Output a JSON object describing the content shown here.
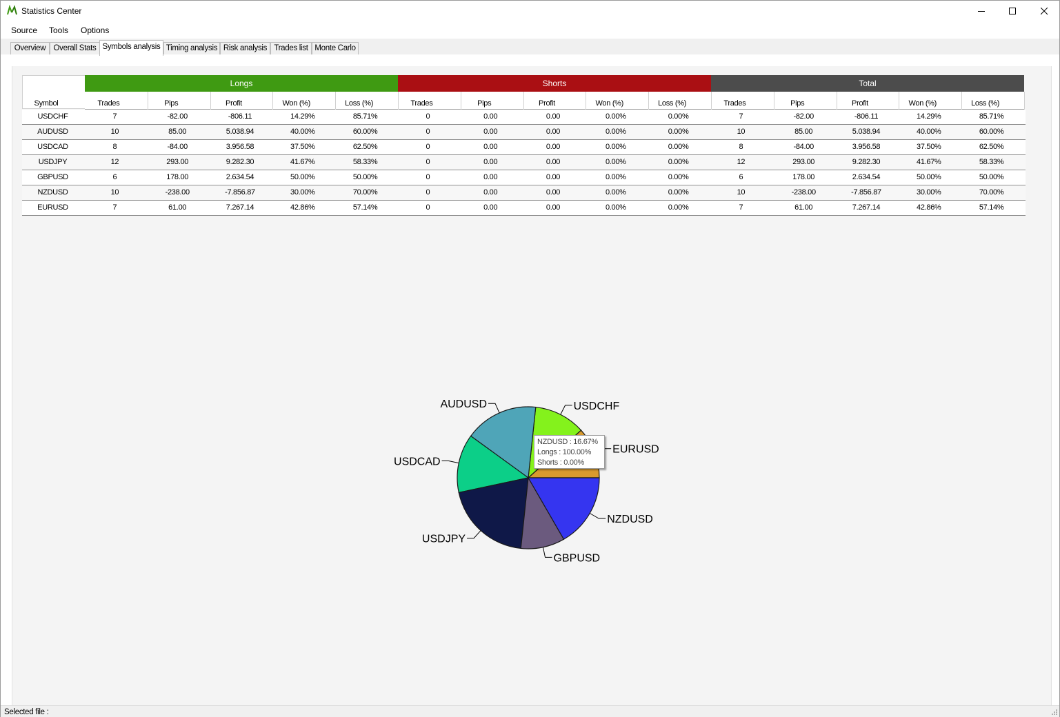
{
  "window": {
    "title": "Statistics Center",
    "icon": "m-logo-icon"
  },
  "menu": [
    "Source",
    "Tools",
    "Options"
  ],
  "tabs": [
    "Overview",
    "Overall Stats",
    "Symbols analysis",
    "Timing analysis",
    "Risk analysis",
    "Trades list",
    "Monte Carlo"
  ],
  "active_tab": "Symbols analysis",
  "table": {
    "groups": [
      {
        "label": "Longs",
        "color": "#3f9a12"
      },
      {
        "label": "Shorts",
        "color": "#aa0f13"
      },
      {
        "label": "Total",
        "color": "#4c4c4c"
      }
    ],
    "symbol_header": "Symbol",
    "sub_headers": [
      "Trades",
      "Pips",
      "Profit",
      "Won (%)",
      "Loss (%)"
    ],
    "rows": [
      [
        "USDCHF",
        "7",
        "-82.00",
        "-806.11",
        "14.29%",
        "85.71%",
        "0",
        "0.00",
        "0.00",
        "0.00%",
        "0.00%",
        "7",
        "-82.00",
        "-806.11",
        "14.29%",
        "85.71%"
      ],
      [
        "AUDUSD",
        "10",
        "85.00",
        "5.038.94",
        "40.00%",
        "60.00%",
        "0",
        "0.00",
        "0.00",
        "0.00%",
        "0.00%",
        "10",
        "85.00",
        "5.038.94",
        "40.00%",
        "60.00%"
      ],
      [
        "USDCAD",
        "8",
        "-84.00",
        "3.956.58",
        "37.50%",
        "62.50%",
        "0",
        "0.00",
        "0.00",
        "0.00%",
        "0.00%",
        "8",
        "-84.00",
        "3.956.58",
        "37.50%",
        "62.50%"
      ],
      [
        "USDJPY",
        "12",
        "293.00",
        "9.282.30",
        "41.67%",
        "58.33%",
        "0",
        "0.00",
        "0.00",
        "0.00%",
        "0.00%",
        "12",
        "293.00",
        "9.282.30",
        "41.67%",
        "58.33%"
      ],
      [
        "GBPUSD",
        "6",
        "178.00",
        "2.634.54",
        "50.00%",
        "50.00%",
        "0",
        "0.00",
        "0.00",
        "0.00%",
        "0.00%",
        "6",
        "178.00",
        "2.634.54",
        "50.00%",
        "50.00%"
      ],
      [
        "NZDUSD",
        "10",
        "-238.00",
        "-7.856.87",
        "30.00%",
        "70.00%",
        "0",
        "0.00",
        "0.00",
        "0.00%",
        "0.00%",
        "10",
        "-238.00",
        "-7.856.87",
        "30.00%",
        "70.00%"
      ],
      [
        "EURUSD",
        "7",
        "61.00",
        "7.267.14",
        "42.86%",
        "57.14%",
        "0",
        "0.00",
        "0.00",
        "0.00%",
        "0.00%",
        "7",
        "61.00",
        "7.267.14",
        "42.86%",
        "57.14%"
      ]
    ]
  },
  "chart_data": {
    "type": "pie",
    "categories": [
      "EURUSD",
      "USDCHF",
      "AUDUSD",
      "USDCAD",
      "USDJPY",
      "GBPUSD",
      "NZDUSD"
    ],
    "values": [
      7,
      7,
      10,
      8,
      12,
      6,
      10
    ],
    "colors": [
      "#d89a2e",
      "#84f21c",
      "#4fa5b8",
      "#0ccf88",
      "#0f1848",
      "#6b5a7e",
      "#3535f0"
    ],
    "title": "",
    "tooltip": {
      "lines": [
        "NZDUSD : 16.67%",
        "Longs : 100.00%",
        "Shorts : 0.00%"
      ]
    }
  },
  "status": {
    "text": "Selected file :"
  }
}
